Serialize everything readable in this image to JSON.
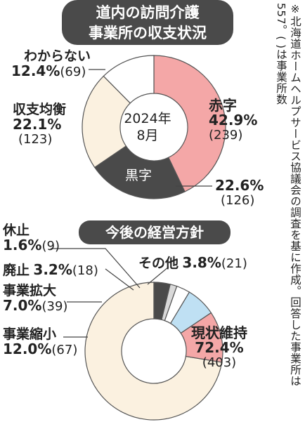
{
  "chart_data": [
    {
      "type": "pie",
      "title_line1": "道内の訪問介護",
      "title_line2": "事業所の収支状況",
      "center_line1": "2024年",
      "center_line2": "8月",
      "slices": [
        {
          "name": "赤字",
          "percent": 42.9,
          "percent_label": "42.9%",
          "count_label": "(239)",
          "color": "#f4a7a7"
        },
        {
          "name": "黒字",
          "percent": 22.6,
          "percent_label": "22.6%",
          "count_label": "(126)",
          "color": "#4a4a4a"
        },
        {
          "name": "収支均衡",
          "percent": 22.1,
          "percent_label": "22.1%",
          "count_label": "(123)",
          "color": "#fbf1e0"
        },
        {
          "name": "わからない",
          "percent": 12.4,
          "percent_label": "12.4%",
          "count_label": "(69)",
          "color": "#ffffff"
        }
      ]
    },
    {
      "type": "pie",
      "title": "今後の経営方針",
      "slices": [
        {
          "name": "現状維持",
          "percent": 72.4,
          "percent_label": "72.4%",
          "count_label": "(403)",
          "color": "#fbf1e0"
        },
        {
          "name": "事業縮小",
          "percent": 12.0,
          "percent_label": "12.0%",
          "count_label": "(67)",
          "color": "#f4a7a7"
        },
        {
          "name": "事業拡大",
          "percent": 7.0,
          "percent_label": "7.0%",
          "count_label": "(39)",
          "color": "#bfe0f3"
        },
        {
          "name": "廃止",
          "percent": 3.2,
          "percent_label": "3.2%",
          "count_label": "(18)",
          "color": "#ffffff"
        },
        {
          "name": "休止",
          "percent": 1.6,
          "percent_label": "1.6%",
          "count_label": "(9)",
          "color": "#d9d9d9"
        },
        {
          "name": "その他",
          "percent": 3.8,
          "percent_label": "3.8%",
          "count_label": "(21)",
          "color": "#4a4a4a"
        }
      ]
    }
  ],
  "note": "※北海道ホームヘルプサービス協議会の調査を基に作成。回答した事業所は557。( )は事業所数"
}
